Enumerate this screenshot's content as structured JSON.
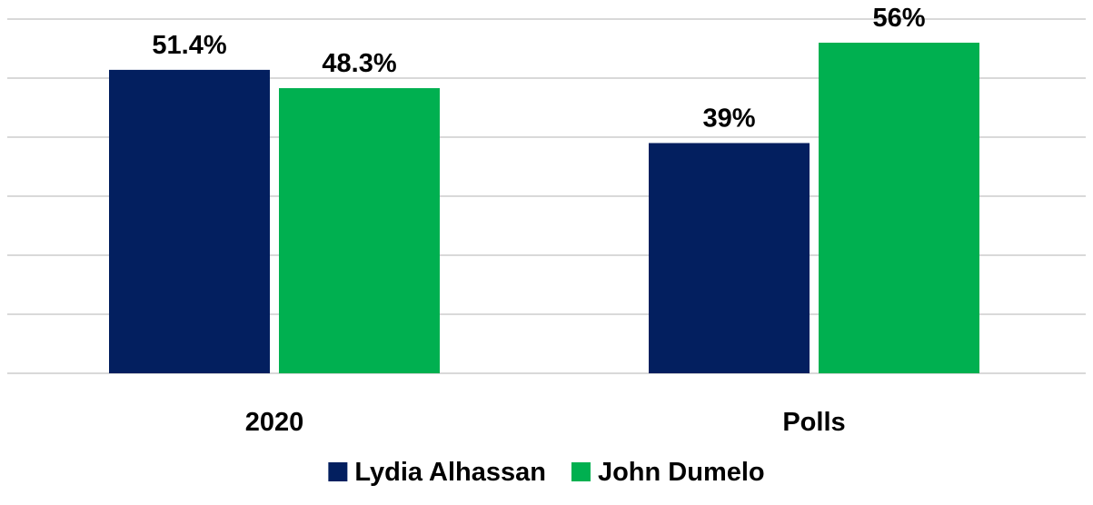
{
  "chart_data": {
    "type": "bar",
    "categories": [
      "2020",
      "Polls"
    ],
    "series": [
      {
        "name": "Lydia Alhassan",
        "color": "#031f5f",
        "values": [
          51.4,
          39
        ],
        "labels": [
          "51.4%",
          "39%"
        ]
      },
      {
        "name": "John Dumelo",
        "color": "#00b050",
        "values": [
          48.3,
          56
        ],
        "labels": [
          "48.3%",
          "56%"
        ]
      }
    ],
    "title": "",
    "xlabel": "",
    "ylabel": "",
    "ylim": [
      0,
      60
    ],
    "y_tick_step": 10,
    "grid": true,
    "legend_position": "bottom"
  }
}
